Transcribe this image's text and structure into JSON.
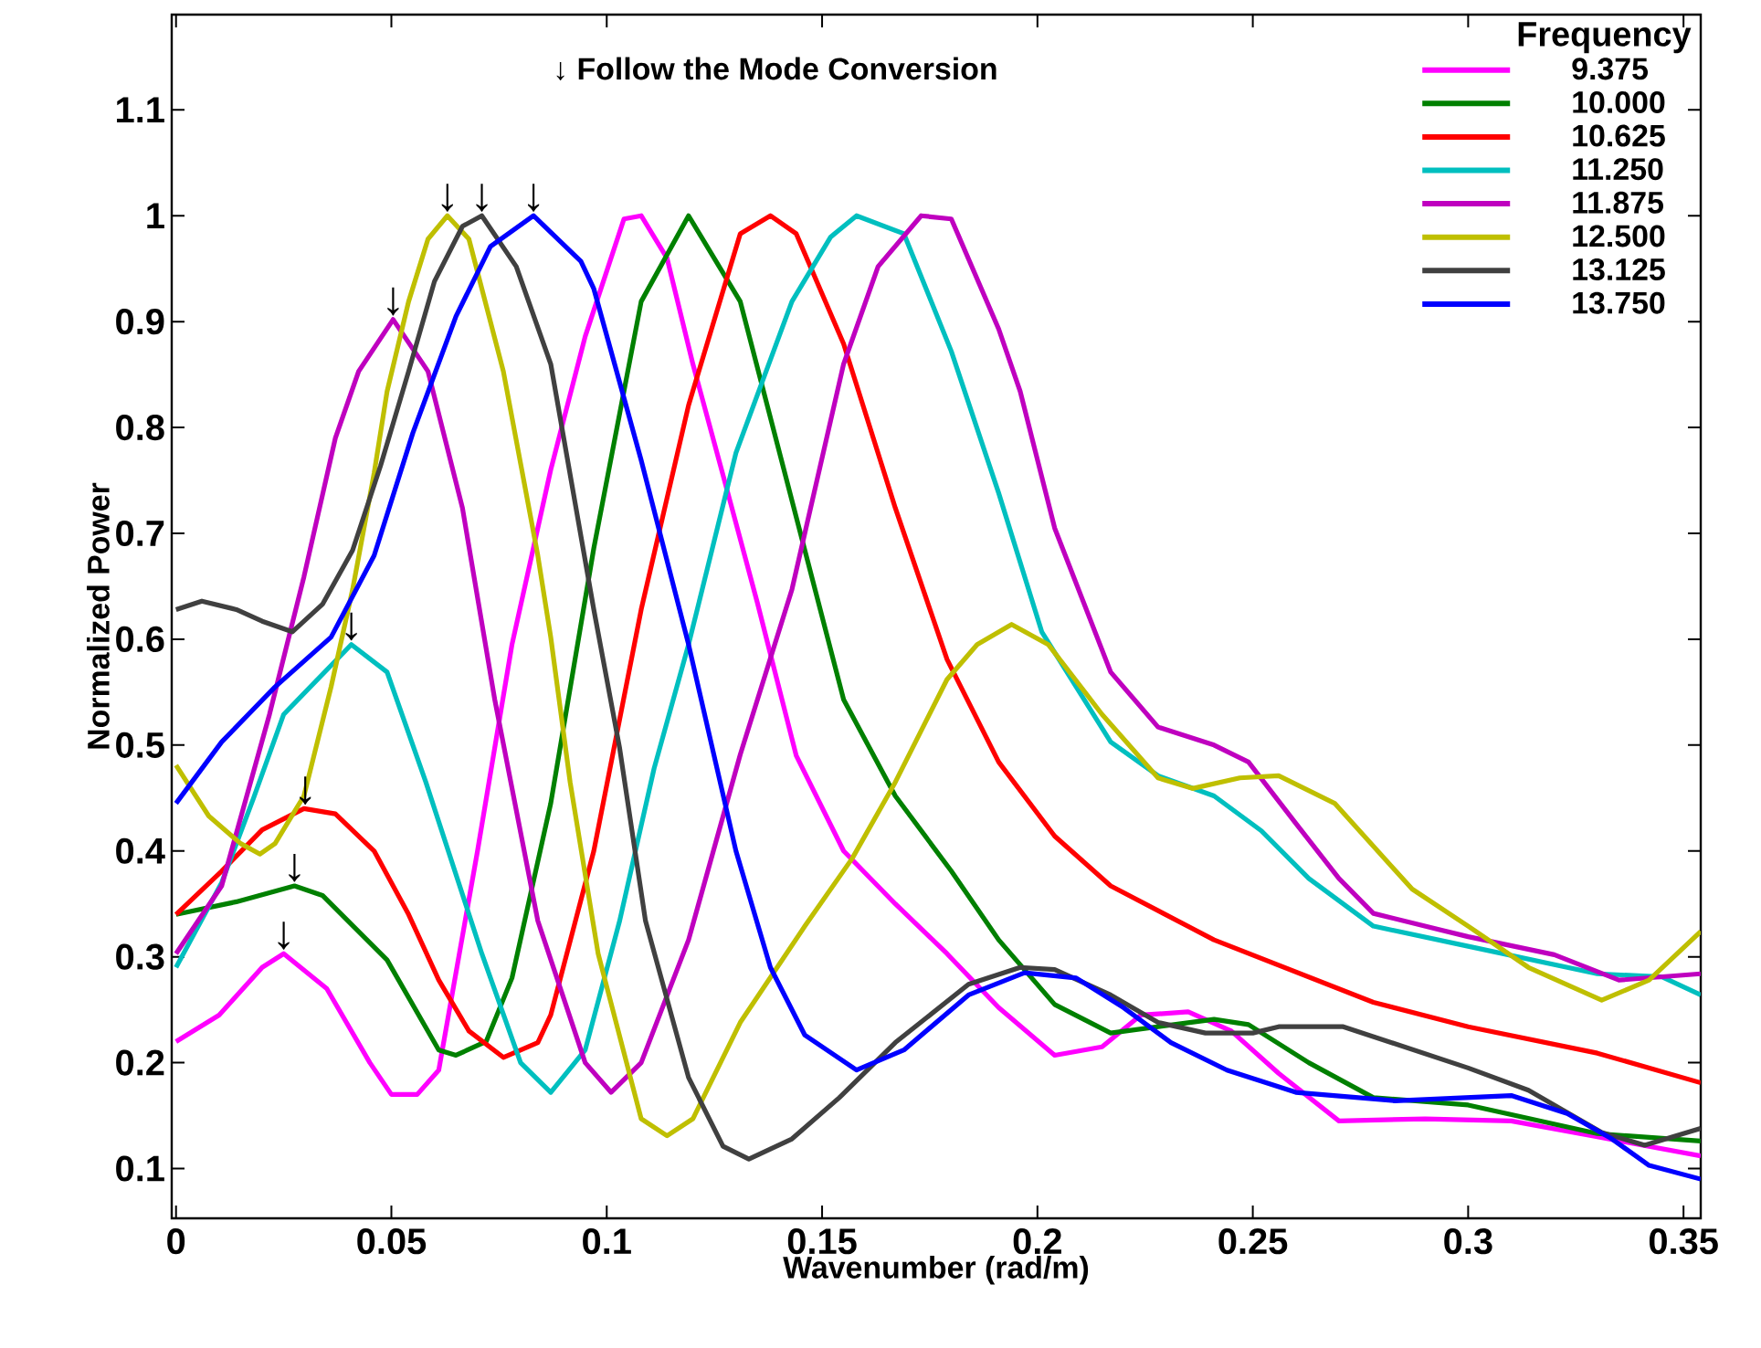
{
  "chart_data": {
    "type": "line",
    "xlabel": "Wavenumber (rad/m)",
    "ylabel": "Normalized Power",
    "legend_title": "Frequency",
    "legend": "top right",
    "xlim": [
      -0.001,
      0.354
    ],
    "ylim": [
      0.053,
      1.19
    ],
    "xticks": [
      0,
      0.05,
      0.1,
      0.15,
      0.2,
      0.25,
      0.3,
      0.35
    ],
    "yticks": [
      0.1,
      0.2,
      0.3,
      0.4,
      0.5,
      0.6,
      0.7,
      0.8,
      0.9,
      1,
      1.1
    ],
    "series": [
      {
        "name": "9.375",
        "color": "#ff00ff",
        "x": [
          0,
          0.01,
          0.02,
          0.025,
          0.035,
          0.045,
          0.05,
          0.056,
          0.061,
          0.07,
          0.078,
          0.087,
          0.095,
          0.104,
          0.108,
          0.114,
          0.12,
          0.128,
          0.135,
          0.144,
          0.155,
          0.167,
          0.179,
          0.191,
          0.204,
          0.215,
          0.224,
          0.235,
          0.245,
          0.256,
          0.27,
          0.29,
          0.31,
          0.33,
          0.354
        ],
        "values": [
          0.22,
          0.245,
          0.29,
          0.303,
          0.27,
          0.2,
          0.17,
          0.17,
          0.193,
          0.4,
          0.595,
          0.76,
          0.886,
          0.997,
          1.0,
          0.96,
          0.86,
          0.74,
          0.634,
          0.49,
          0.4,
          0.35,
          0.303,
          0.252,
          0.207,
          0.215,
          0.245,
          0.248,
          0.23,
          0.19,
          0.145,
          0.147,
          0.145,
          0.13,
          0.112
        ]
      },
      {
        "name": "10.000",
        "color": "#008000",
        "x": [
          0,
          0.014,
          0.0275,
          0.034,
          0.049,
          0.061,
          0.065,
          0.072,
          0.078,
          0.087,
          0.097,
          0.108,
          0.119,
          0.131,
          0.143,
          0.155,
          0.167,
          0.18,
          0.191,
          0.204,
          0.217,
          0.241,
          0.249,
          0.263,
          0.278,
          0.3,
          0.33,
          0.354
        ],
        "values": [
          0.34,
          0.352,
          0.367,
          0.358,
          0.297,
          0.212,
          0.207,
          0.22,
          0.28,
          0.445,
          0.686,
          0.919,
          1.0,
          0.919,
          0.731,
          0.543,
          0.452,
          0.381,
          0.316,
          0.255,
          0.228,
          0.241,
          0.236,
          0.2,
          0.167,
          0.16,
          0.133,
          0.126
        ]
      },
      {
        "name": "10.625",
        "color": "#ff0000",
        "x": [
          0,
          0.0106,
          0.02,
          0.0297,
          0.037,
          0.046,
          0.054,
          0.061,
          0.068,
          0.076,
          0.084,
          0.087,
          0.097,
          0.108,
          0.119,
          0.131,
          0.138,
          0.144,
          0.155,
          0.167,
          0.179,
          0.191,
          0.204,
          0.217,
          0.241,
          0.278,
          0.3,
          0.33,
          0.354
        ],
        "values": [
          0.34,
          0.381,
          0.42,
          0.44,
          0.435,
          0.4,
          0.34,
          0.278,
          0.23,
          0.205,
          0.219,
          0.245,
          0.4,
          0.628,
          0.821,
          0.983,
          1.0,
          0.983,
          0.879,
          0.724,
          0.581,
          0.484,
          0.414,
          0.367,
          0.316,
          0.257,
          0.234,
          0.209,
          0.181
        ]
      },
      {
        "name": "11.250",
        "color": "#00bfbf",
        "x": [
          0,
          0.0106,
          0.018,
          0.025,
          0.0407,
          0.049,
          0.058,
          0.071,
          0.08,
          0.087,
          0.095,
          0.103,
          0.111,
          0.119,
          0.13,
          0.143,
          0.152,
          0.158,
          0.169,
          0.18,
          0.191,
          0.201,
          0.217,
          0.228,
          0.241,
          0.252,
          0.263,
          0.278,
          0.3,
          0.33,
          0.345,
          0.354
        ],
        "values": [
          0.29,
          0.37,
          0.45,
          0.529,
          0.595,
          0.569,
          0.465,
          0.303,
          0.2,
          0.172,
          0.212,
          0.334,
          0.478,
          0.595,
          0.776,
          0.919,
          0.98,
          1.0,
          0.983,
          0.872,
          0.738,
          0.607,
          0.503,
          0.471,
          0.452,
          0.419,
          0.374,
          0.329,
          0.31,
          0.284,
          0.281,
          0.264
        ]
      },
      {
        "name": "11.875",
        "color": "#bf00bf",
        "x": [
          0,
          0.0106,
          0.0217,
          0.0297,
          0.037,
          0.0424,
          0.0504,
          0.0585,
          0.0665,
          0.074,
          0.084,
          0.095,
          0.101,
          0.108,
          0.119,
          0.131,
          0.143,
          0.155,
          0.163,
          0.173,
          0.18,
          0.191,
          0.196,
          0.204,
          0.217,
          0.228,
          0.241,
          0.249,
          0.26,
          0.27,
          0.278,
          0.3,
          0.32,
          0.335,
          0.354
        ],
        "values": [
          0.303,
          0.367,
          0.529,
          0.659,
          0.79,
          0.853,
          0.902,
          0.853,
          0.724,
          0.543,
          0.334,
          0.2,
          0.172,
          0.2,
          0.316,
          0.491,
          0.647,
          0.86,
          0.952,
          1.0,
          0.997,
          0.893,
          0.834,
          0.705,
          0.569,
          0.517,
          0.5,
          0.484,
          0.426,
          0.374,
          0.341,
          0.319,
          0.302,
          0.278,
          0.284
        ]
      },
      {
        "name": "12.500",
        "color": "#bfbf00",
        "x": [
          0,
          0.0076,
          0.015,
          0.0195,
          0.023,
          0.0297,
          0.036,
          0.041,
          0.046,
          0.049,
          0.054,
          0.0585,
          0.063,
          0.068,
          0.076,
          0.084,
          0.087,
          0.0915,
          0.098,
          0.108,
          0.114,
          0.12,
          0.131,
          0.146,
          0.157,
          0.167,
          0.179,
          0.186,
          0.194,
          0.2025,
          0.215,
          0.228,
          0.236,
          0.247,
          0.256,
          0.269,
          0.287,
          0.3,
          0.314,
          0.331,
          0.342,
          0.354
        ],
        "values": [
          0.481,
          0.433,
          0.407,
          0.397,
          0.407,
          0.452,
          0.555,
          0.647,
          0.757,
          0.834,
          0.919,
          0.978,
          1.0,
          0.978,
          0.853,
          0.679,
          0.602,
          0.465,
          0.303,
          0.147,
          0.131,
          0.147,
          0.238,
          0.329,
          0.393,
          0.465,
          0.562,
          0.595,
          0.614,
          0.595,
          0.529,
          0.469,
          0.459,
          0.469,
          0.471,
          0.445,
          0.364,
          0.329,
          0.29,
          0.259,
          0.278,
          0.324
        ]
      },
      {
        "name": "13.125",
        "color": "#404040",
        "x": [
          0,
          0.006,
          0.014,
          0.02,
          0.027,
          0.034,
          0.041,
          0.0475,
          0.054,
          0.06,
          0.0665,
          0.071,
          0.079,
          0.087,
          0.097,
          0.103,
          0.109,
          0.119,
          0.127,
          0.133,
          0.143,
          0.154,
          0.167,
          0.184,
          0.196,
          0.204,
          0.217,
          0.228,
          0.239,
          0.25,
          0.256,
          0.271,
          0.3,
          0.314,
          0.331,
          0.341,
          0.354
        ],
        "values": [
          0.628,
          0.636,
          0.628,
          0.617,
          0.607,
          0.633,
          0.684,
          0.764,
          0.853,
          0.938,
          0.99,
          1.0,
          0.952,
          0.86,
          0.628,
          0.497,
          0.334,
          0.186,
          0.121,
          0.109,
          0.128,
          0.167,
          0.219,
          0.274,
          0.29,
          0.288,
          0.264,
          0.238,
          0.228,
          0.228,
          0.234,
          0.234,
          0.195,
          0.174,
          0.134,
          0.122,
          0.138
        ]
      },
      {
        "name": "13.750",
        "color": "#0000ff",
        "x": [
          0,
          0.0106,
          0.023,
          0.036,
          0.046,
          0.055,
          0.065,
          0.073,
          0.083,
          0.094,
          0.097,
          0.108,
          0.119,
          0.13,
          0.138,
          0.146,
          0.158,
          0.169,
          0.184,
          0.197,
          0.209,
          0.22,
          0.231,
          0.244,
          0.26,
          0.283,
          0.31,
          0.323,
          0.333,
          0.342,
          0.354
        ],
        "values": [
          0.445,
          0.503,
          0.555,
          0.602,
          0.679,
          0.795,
          0.905,
          0.971,
          1.0,
          0.957,
          0.931,
          0.769,
          0.595,
          0.4,
          0.29,
          0.226,
          0.193,
          0.212,
          0.264,
          0.285,
          0.28,
          0.252,
          0.219,
          0.193,
          0.172,
          0.164,
          0.169,
          0.152,
          0.129,
          0.103,
          0.09
        ]
      }
    ],
    "annotations": [
      "↓ Follow the Mode Conversion",
      {
        "text": "↓",
        "x": 0.025,
        "y": 0.303
      },
      {
        "text": "↓",
        "x": 0.0275,
        "y": 0.367
      },
      {
        "text": "↓",
        "x": 0.03,
        "y": 0.44
      },
      {
        "text": "↓",
        "x": 0.0407,
        "y": 0.595
      },
      {
        "text": "↓",
        "x": 0.0504,
        "y": 0.902
      },
      {
        "text": "↓",
        "x": 0.063,
        "y": 1.0
      },
      {
        "text": "↓",
        "x": 0.071,
        "y": 1.0
      },
      {
        "text": "↓",
        "x": 0.083,
        "y": 1.0
      }
    ]
  }
}
